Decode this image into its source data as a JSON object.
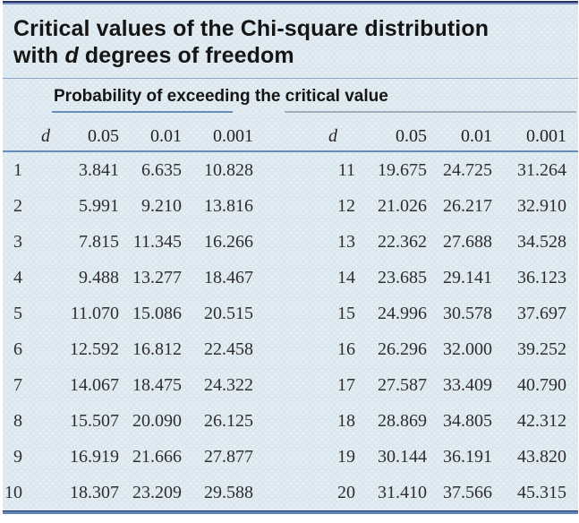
{
  "title": {
    "line1": "Critical values of the Chi-square distribution",
    "line2_before": "with ",
    "line2_var": "d",
    "line2_after": " degrees of freedom"
  },
  "table": {
    "span_header": "Probability of exceeding the critical value",
    "column_headers": [
      "d",
      "0.05",
      "0.01",
      "0.001",
      "d",
      "0.05",
      "0.01",
      "0.001"
    ],
    "rows": [
      [
        "1",
        "3.841",
        "6.635",
        "10.828",
        "11",
        "19.675",
        "24.725",
        "31.264"
      ],
      [
        "2",
        "5.991",
        "9.210",
        "13.816",
        "12",
        "21.026",
        "26.217",
        "32.910"
      ],
      [
        "3",
        "7.815",
        "11.345",
        "16.266",
        "13",
        "22.362",
        "27.688",
        "34.528"
      ],
      [
        "4",
        "9.488",
        "13.277",
        "18.467",
        "14",
        "23.685",
        "29.141",
        "36.123"
      ],
      [
        "5",
        "11.070",
        "15.086",
        "20.515",
        "15",
        "24.996",
        "30.578",
        "37.697"
      ],
      [
        "6",
        "12.592",
        "16.812",
        "22.458",
        "16",
        "26.296",
        "32.000",
        "39.252"
      ],
      [
        "7",
        "14.067",
        "18.475",
        "24.322",
        "17",
        "27.587",
        "33.409",
        "40.790"
      ],
      [
        "8",
        "15.507",
        "20.090",
        "26.125",
        "18",
        "28.869",
        "34.805",
        "42.312"
      ],
      [
        "9",
        "16.919",
        "21.666",
        "27.877",
        "19",
        "30.144",
        "36.191",
        "43.820"
      ],
      [
        "10",
        "18.307",
        "23.209",
        "29.588",
        "20",
        "31.410",
        "37.566",
        "45.315"
      ]
    ]
  },
  "colors": {
    "panel_background": "#dce8ef",
    "dot_color": "#ebf1f6",
    "top_border_dark": "#24335f",
    "top_border_light": "#7e90c4",
    "rule_light": "#91a7c5",
    "rule_medium": "#6a8cba",
    "rule_gray": "#a0acc0",
    "bottom_rule_blue": "#5c84b4",
    "text": "#151515",
    "number_text": "#2e2e2e"
  }
}
